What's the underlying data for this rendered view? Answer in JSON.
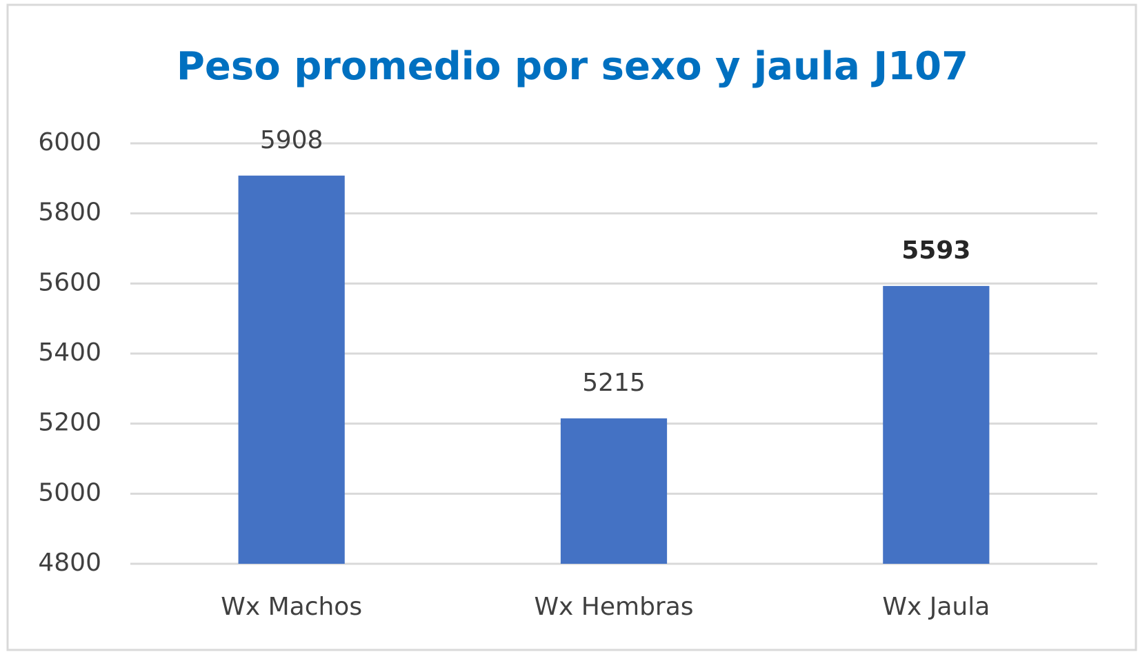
{
  "chart_data": {
    "type": "bar",
    "title": "Peso promedio por sexo y jaula J107",
    "categories": [
      "Wx Machos",
      "Wx Hembras",
      "Wx Jaula"
    ],
    "values": [
      5908,
      5215,
      5593
    ],
    "value_label_bold": [
      false,
      false,
      true
    ],
    "color": "#4472c4",
    "ylim": [
      4800,
      6000
    ],
    "yticks": [
      4800,
      5000,
      5200,
      5400,
      5600,
      5800,
      6000
    ],
    "grid": true
  }
}
